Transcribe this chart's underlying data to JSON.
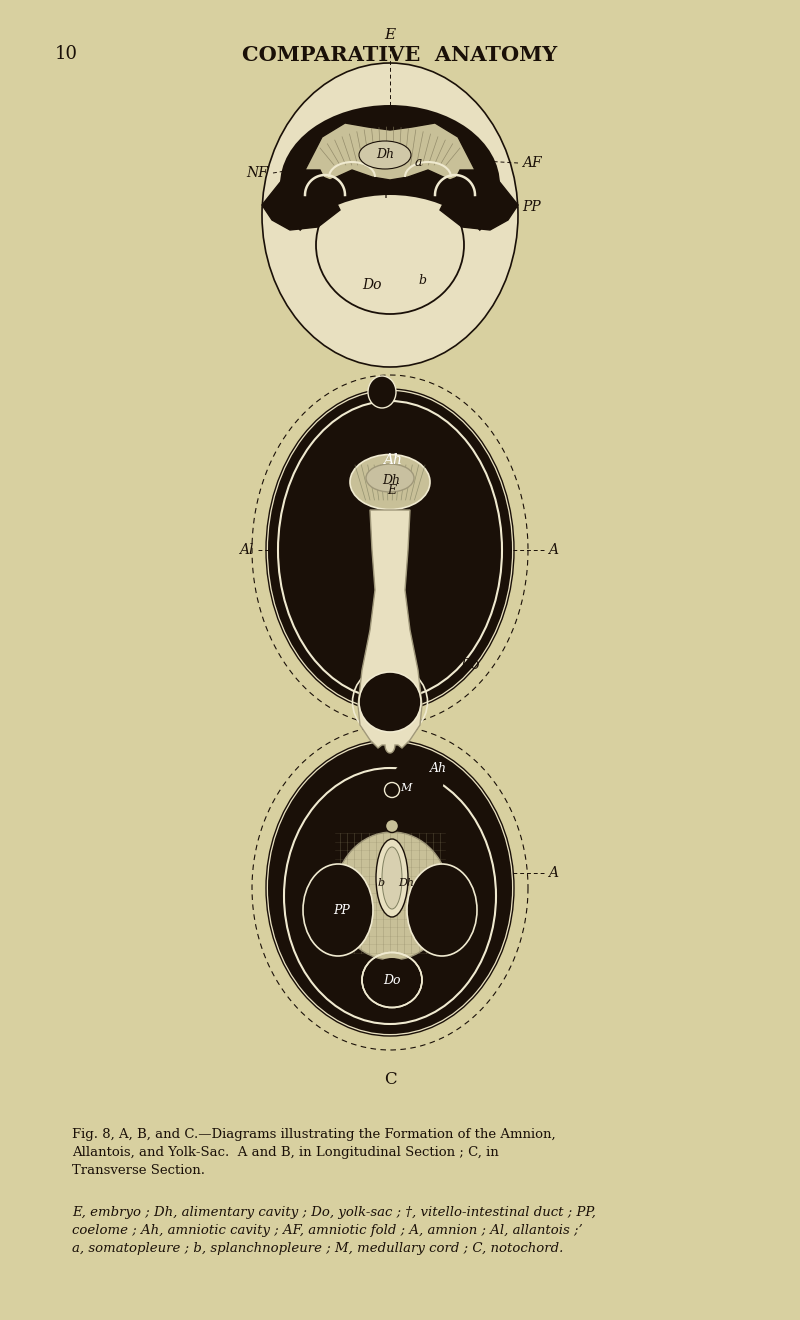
{
  "bg_color": "#d8d0a0",
  "title": "COMPARATIVE  ANATOMY",
  "page_num": "10",
  "caption_title": "Fig. 8, A, B, and C.—Diagrams illustrating the Formation of the Amnion,\nAllantois, and Yolk-Sac.  A and B, in Longitudinal Section ; C, in\nTransverse Section.",
  "caption_body": "E, embryo ; Dh, alimentary cavity ; Do, yolk-sac ; †, vitello-intestinal duct ; PP,\ncoelome ; Ah, amniotic cavity ; AF, amniotic fold ; A, amnion ; Al, allantois ;’\na, somatopleure ; b, splanchnopleure ; M, medullary cord ; C, notochord.",
  "black": "#1a1008",
  "cream": "#e8e0c0",
  "tan": "#c8c098",
  "white_line": "#f0ead0"
}
